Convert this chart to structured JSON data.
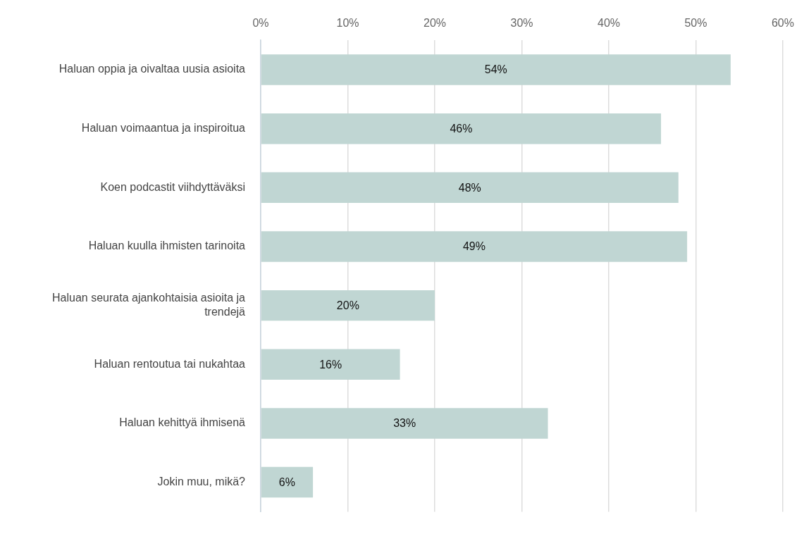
{
  "chart_data": {
    "type": "bar",
    "orientation": "horizontal",
    "categories": [
      "Haluan oppia ja oivaltaa uusia asioita",
      "Haluan voimaantua ja inspiroitua",
      "Koen podcastit viihdyttäväksi",
      "Haluan kuulla ihmisten tarinoita",
      "Haluan seurata ajankohtaisia asioita ja trendejä",
      "Haluan rentoutua tai nukahtaa",
      "Haluan kehittyä ihmisenä",
      "Jokin muu, mikä?"
    ],
    "values": [
      54,
      46,
      48,
      49,
      20,
      16,
      33,
      6
    ],
    "value_labels": [
      "54%",
      "46%",
      "48%",
      "49%",
      "20%",
      "16%",
      "33%",
      "6%"
    ],
    "color": "#c0d6d3",
    "xlim": [
      0,
      60
    ],
    "xticks": [
      {
        "value": 0,
        "label": "0%"
      },
      {
        "value": 10,
        "label": "10%"
      },
      {
        "value": 20,
        "label": "20%"
      },
      {
        "value": 30,
        "label": "30%"
      },
      {
        "value": 40,
        "label": "40%"
      },
      {
        "value": 50,
        "label": "50%"
      },
      {
        "value": 60,
        "label": "60%"
      }
    ],
    "grid": "x",
    "legend": false
  }
}
